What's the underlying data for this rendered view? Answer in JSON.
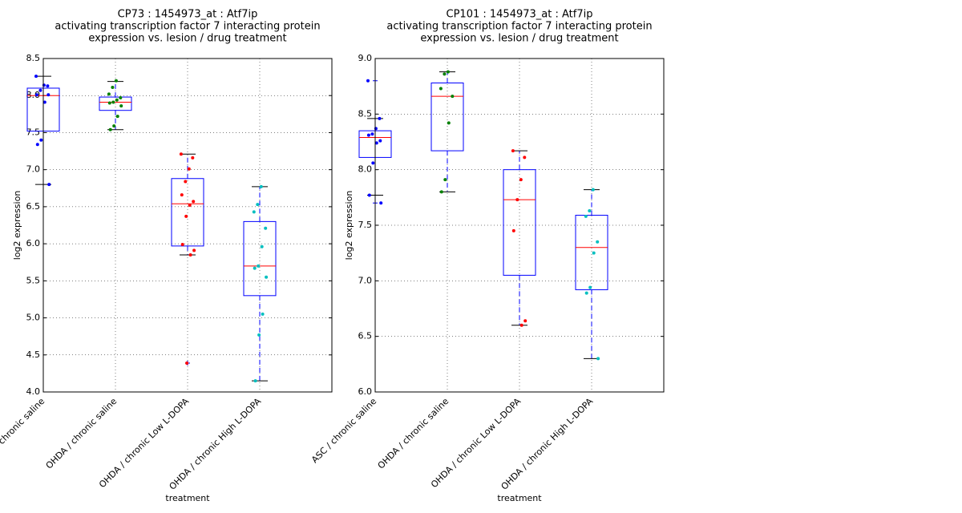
{
  "chart_data": [
    {
      "type": "box",
      "title": [
        "CP73 : 1454973_at : Atf7ip",
        "activating transcription factor 7 interacting protein",
        "expression vs. lesion / drug treatment"
      ],
      "xlabel": "treatment",
      "ylabel": "log2 expression",
      "categories": [
        "ASC / chronic saline",
        "OHDA / chronic saline",
        "OHDA / chronic Low L-DOPA",
        "OHDA / chronic High L-DOPA"
      ],
      "ylim": [
        4.0,
        8.5
      ],
      "yticks": [
        {
          "value": 4.0,
          "label": "4.0"
        },
        4.5,
        {
          "value": 5.0,
          "label": "5.0"
        },
        5.5,
        {
          "value": 6.0,
          "label": "6.0"
        },
        6.5,
        {
          "value": 7.0,
          "label": "7.0"
        },
        7.5,
        {
          "value": 8.0,
          "label": "8.0"
        },
        8.5
      ],
      "grid": true,
      "box_color": "#0000ff",
      "median_color": "#ff0000",
      "boxes": [
        {
          "whisker_low": 6.8,
          "q1": 7.52,
          "median": 8.0,
          "q3": 8.1,
          "whisker_high": 8.26,
          "outliers": []
        },
        {
          "whisker_low": 7.54,
          "q1": 7.8,
          "median": 7.91,
          "q3": 7.98,
          "whisker_high": 8.19,
          "outliers": []
        },
        {
          "whisker_low": 5.85,
          "q1": 5.97,
          "median": 6.54,
          "q3": 6.88,
          "whisker_high": 7.21,
          "outliers": [
            4.39
          ]
        },
        {
          "whisker_low": 4.15,
          "q1": 5.3,
          "median": 5.7,
          "q3": 6.3,
          "whisker_high": 6.77,
          "outliers": []
        }
      ],
      "points": [
        {
          "color": "#0000ff",
          "values": [
            8.26,
            8.13,
            8.14,
            8.07,
            8.01,
            8.01,
            7.91,
            7.4,
            7.34,
            6.8
          ]
        },
        {
          "color": "#008000",
          "values": [
            8.2,
            8.11,
            8.02,
            7.97,
            7.94,
            7.91,
            7.9,
            7.86,
            7.72,
            7.59,
            7.54
          ]
        },
        {
          "color": "#ff0000",
          "values": [
            7.21,
            7.16,
            7.01,
            6.84,
            6.66,
            6.57,
            6.52,
            6.37,
            5.99,
            5.91,
            5.85,
            4.39
          ]
        },
        {
          "color": "#00bfbf",
          "values": [
            6.77,
            6.53,
            6.43,
            6.21,
            5.96,
            5.7,
            5.67,
            5.55,
            5.05,
            4.77,
            4.15
          ]
        }
      ]
    },
    {
      "type": "box",
      "title": [
        "CP101 : 1454973_at : Atf7ip",
        "activating transcription factor 7 interacting protein",
        "expression vs. lesion / drug treatment"
      ],
      "xlabel": "treatment",
      "ylabel": "log2 expression",
      "categories": [
        "ASC / chronic saline",
        "OHDA / chronic saline",
        "OHDA / chronic Low L-DOPA",
        "OHDA / chronic High L-DOPA"
      ],
      "ylim": [
        6.0,
        9.0
      ],
      "yticks": [
        {
          "value": 6.0,
          "label": "6.0"
        },
        6.5,
        {
          "value": 7.0,
          "label": "7.0"
        },
        7.5,
        {
          "value": 8.0,
          "label": "8.0"
        },
        8.5,
        {
          "value": 9.0,
          "label": "9.0"
        }
      ],
      "grid": true,
      "box_color": "#0000ff",
      "median_color": "#ff0000",
      "boxes": [
        {
          "whisker_low": 7.77,
          "q1": 8.11,
          "median": 8.29,
          "q3": 8.35,
          "whisker_high": 8.46,
          "outliers": [
            8.8,
            7.7
          ]
        },
        {
          "whisker_low": 7.8,
          "q1": 8.17,
          "median": 8.66,
          "q3": 8.78,
          "whisker_high": 8.88,
          "outliers": []
        },
        {
          "whisker_low": 6.6,
          "q1": 7.05,
          "median": 7.73,
          "q3": 8.0,
          "whisker_high": 8.17,
          "outliers": []
        },
        {
          "whisker_low": 6.3,
          "q1": 6.92,
          "median": 7.3,
          "q3": 7.59,
          "whisker_high": 7.82,
          "outliers": []
        }
      ],
      "points": [
        {
          "color": "#0000ff",
          "values": [
            8.8,
            8.46,
            8.37,
            8.32,
            8.31,
            8.26,
            8.24,
            8.06,
            7.77,
            7.7
          ]
        },
        {
          "color": "#008000",
          "values": [
            8.88,
            8.86,
            8.73,
            8.66,
            8.42,
            7.91,
            7.8
          ]
        },
        {
          "color": "#ff0000",
          "values": [
            8.17,
            8.11,
            7.91,
            7.73,
            7.45,
            6.64,
            6.6
          ]
        },
        {
          "color": "#00bfbf",
          "values": [
            7.82,
            7.63,
            7.58,
            7.35,
            7.25,
            6.94,
            6.89,
            6.3
          ]
        }
      ]
    }
  ]
}
